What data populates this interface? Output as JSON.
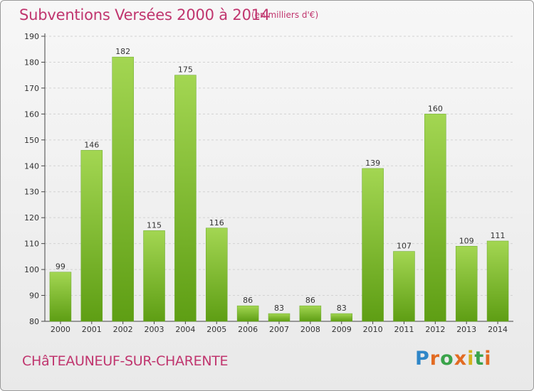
{
  "header": {
    "title": "Subventions Versées 2000 à 2014",
    "subtitle": "(en milliers d'€)"
  },
  "footer": {
    "commune": "CHâTEAUNEUF-SUR-CHARENTE",
    "logo_text": "Proxiti"
  },
  "colors": {
    "bar_light": "#9dd24a",
    "bar_dark": "#5e9e14",
    "title": "#c0356e"
  },
  "chart_data": {
    "type": "bar",
    "title": "Subventions Versées 2000 à 2014",
    "subtitle": "(en milliers d'€)",
    "categories": [
      "2000",
      "2001",
      "2002",
      "2003",
      "2004",
      "2005",
      "2006",
      "2007",
      "2008",
      "2009",
      "2010",
      "2011",
      "2012",
      "2013",
      "2014"
    ],
    "values": [
      99,
      146,
      182,
      115,
      175,
      116,
      86,
      83,
      86,
      83,
      139,
      107,
      160,
      109,
      111
    ],
    "ylim": [
      80,
      190
    ],
    "yticks": [
      80,
      90,
      100,
      110,
      120,
      130,
      140,
      150,
      160,
      170,
      180,
      190
    ],
    "grid": true,
    "data_labels": true,
    "xlabel": "",
    "ylabel": ""
  }
}
